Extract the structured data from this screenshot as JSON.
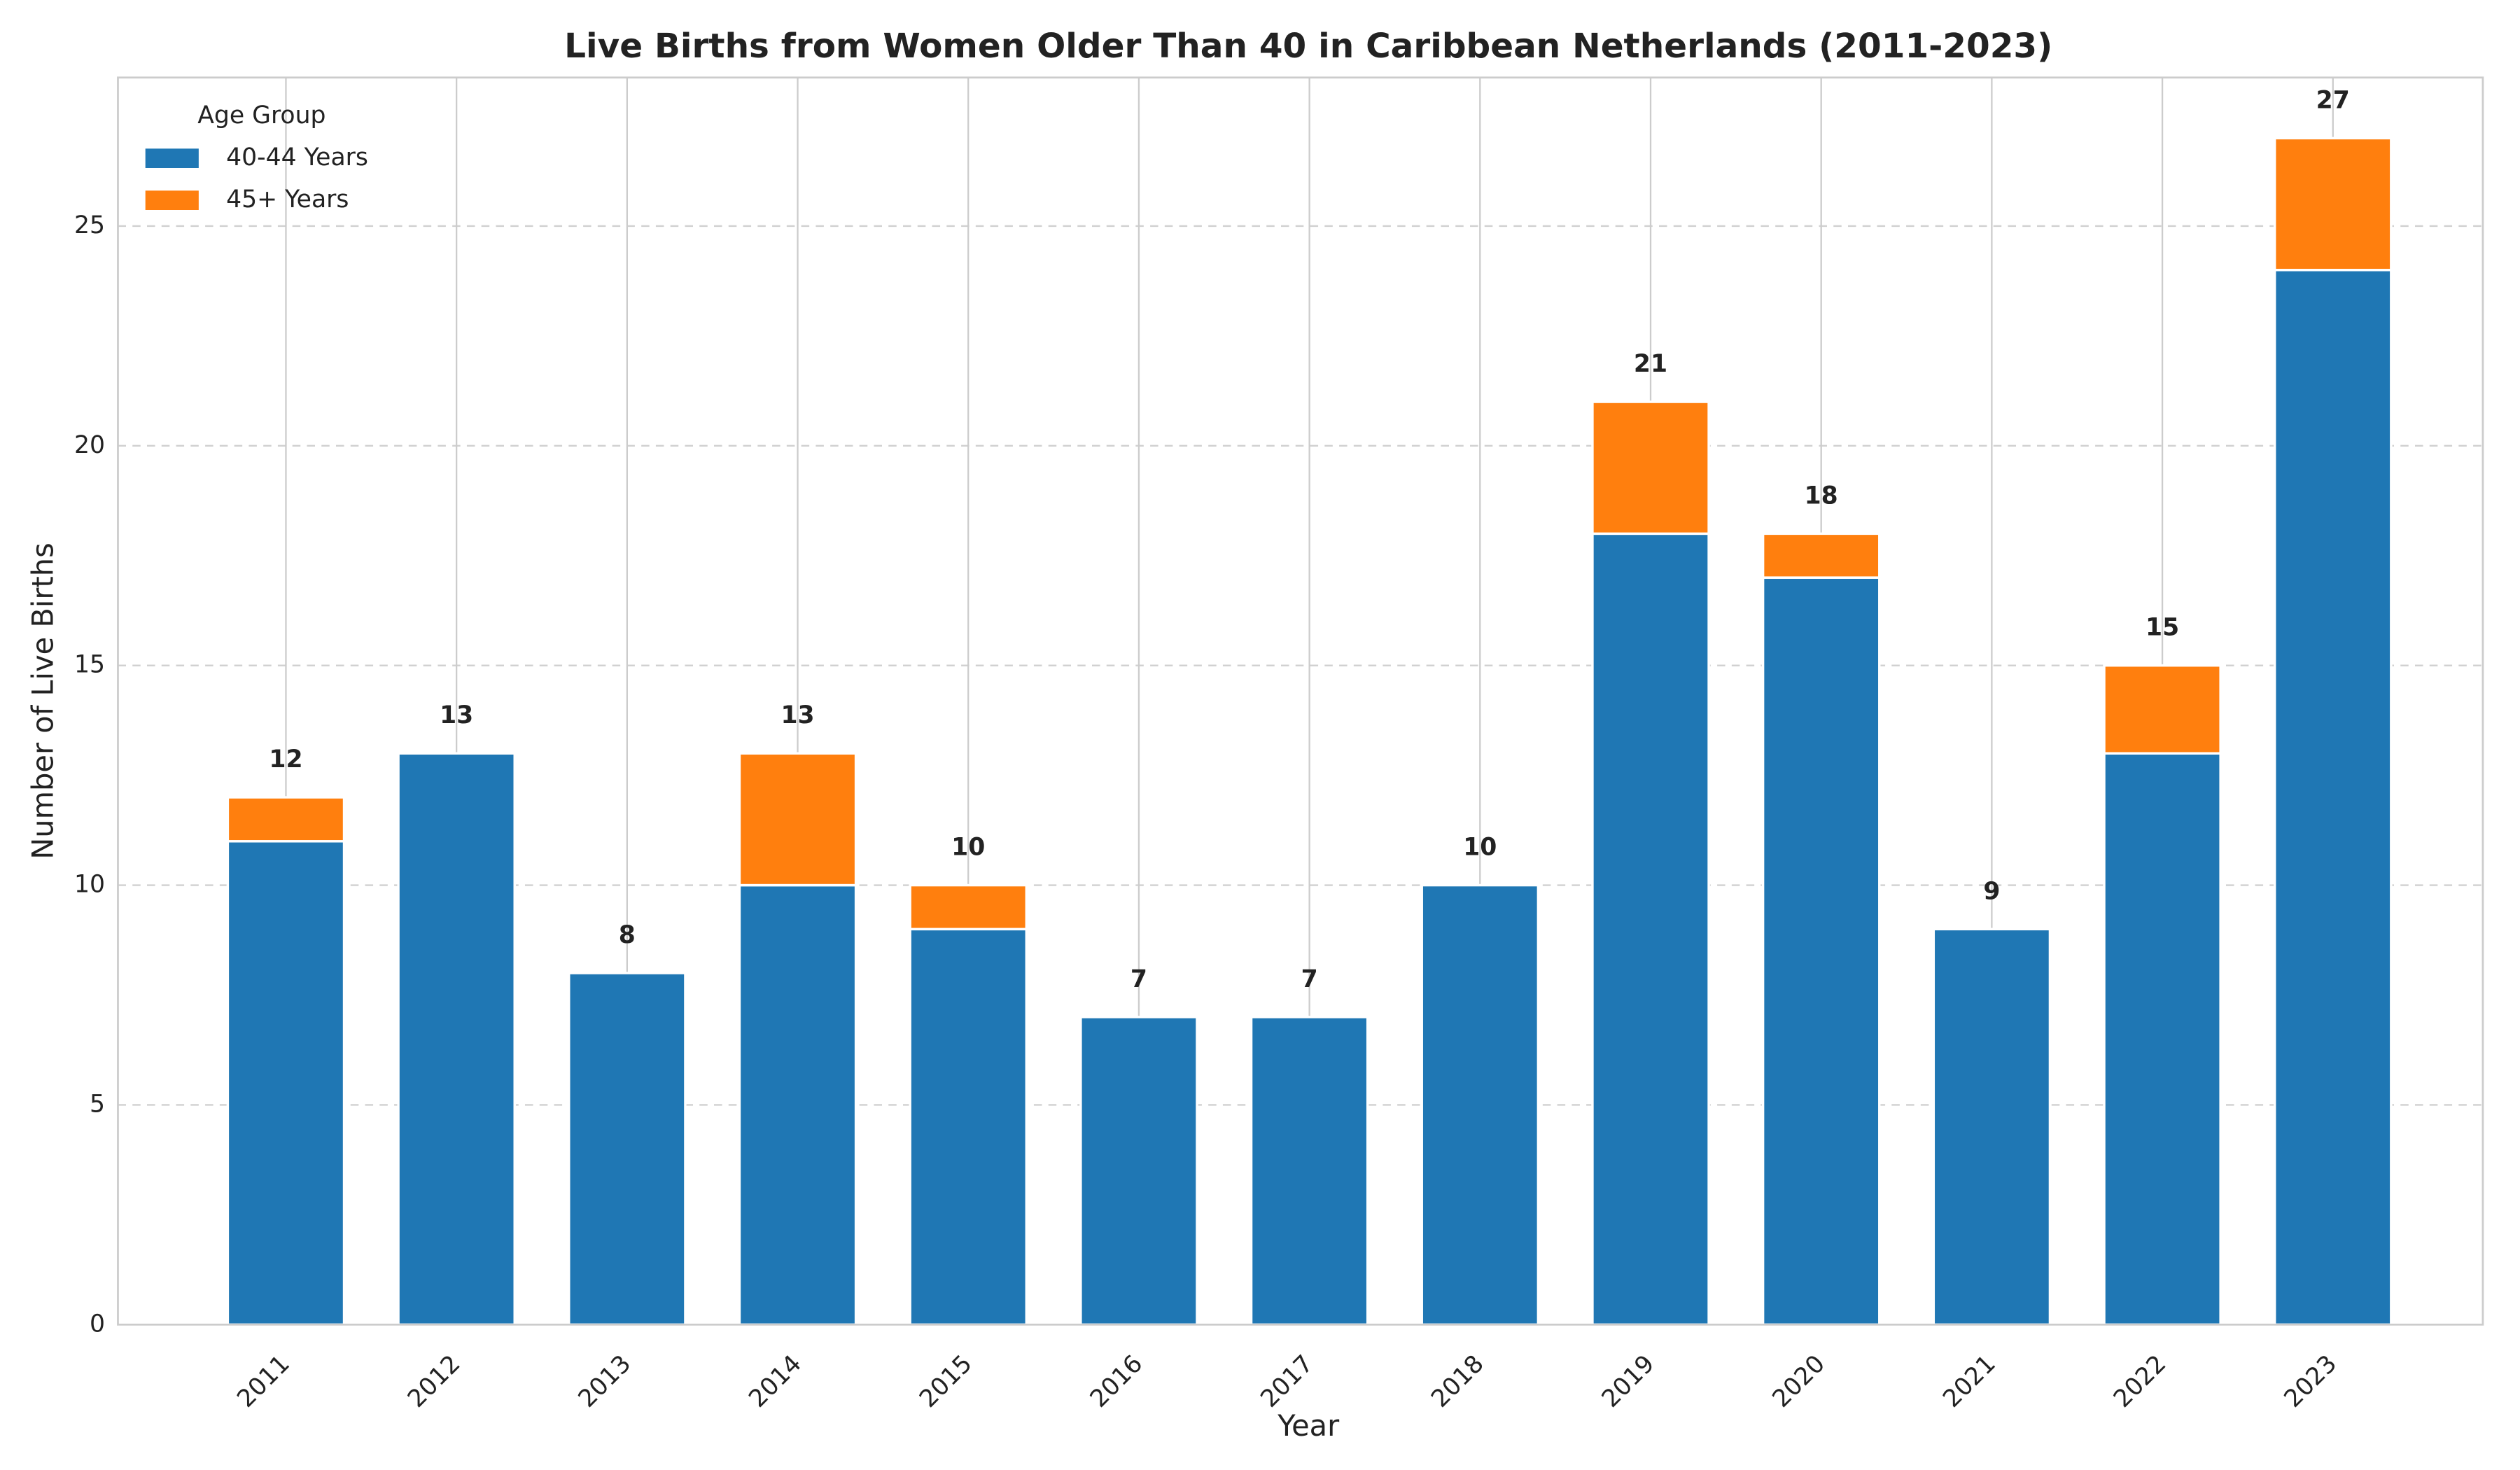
{
  "chart_data": {
    "type": "stacked_bar",
    "title": "Live Births from Women Older Than 40 in Caribbean Netherlands (2011-2023)",
    "x_label": "Year",
    "y_label": "Number of Live Births",
    "categories": [
      "2011",
      "2012",
      "2013",
      "2014",
      "2015",
      "2016",
      "2017",
      "2018",
      "2019",
      "2020",
      "2021",
      "2022",
      "2023"
    ],
    "series": [
      {
        "name": "40-44 Years",
        "color": "#1f77b4",
        "values": [
          11,
          13,
          8,
          10,
          9,
          7,
          7,
          10,
          18,
          17,
          9,
          13,
          24
        ]
      },
      {
        "name": "45+ Years",
        "color": "#ff7f0e",
        "values": [
          1,
          0,
          0,
          3,
          1,
          0,
          0,
          0,
          3,
          1,
          0,
          2,
          3
        ]
      }
    ],
    "totals": [
      12,
      13,
      8,
      13,
      10,
      7,
      7,
      10,
      21,
      18,
      9,
      15,
      27
    ],
    "ylim": [
      0,
      28.38
    ],
    "yticks": [
      0,
      5,
      10,
      15,
      20,
      25
    ],
    "grid": true,
    "legend_title": "Age Group",
    "legend_position": "upper-left"
  }
}
